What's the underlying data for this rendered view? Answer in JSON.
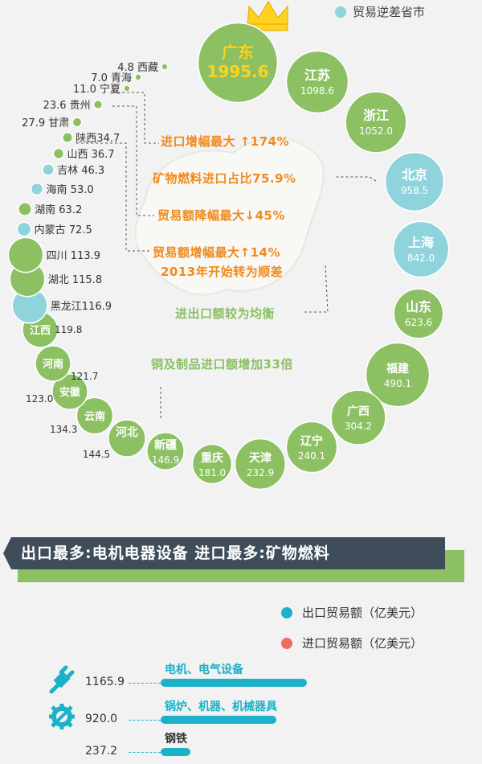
{
  "legend_top": {
    "deficit_label": "贸易逆差省市",
    "deficit_color": "#8fd3dc",
    "surplus_color": "#8cc063"
  },
  "chart_data": [
    {
      "type": "bubble",
      "title": "",
      "categories": [
        "广东",
        "江苏",
        "浙江",
        "北京",
        "上海",
        "山东",
        "福建",
        "广西",
        "辽宁",
        "天津",
        "重庆",
        "新疆",
        "河北",
        "云南",
        "安徽",
        "河南",
        "江西",
        "黑龙江",
        "湖北",
        "四川",
        "内蒙古",
        "湖南",
        "海南",
        "吉林",
        "山西",
        "陕西",
        "甘肃",
        "贵州",
        "宁夏",
        "青海",
        "西藏"
      ],
      "values": [
        1995.6,
        1098.6,
        1052.0,
        958.5,
        842.0,
        623.6,
        490.1,
        304.2,
        240.1,
        232.9,
        181.0,
        146.9,
        144.5,
        134.3,
        123.0,
        121.7,
        119.8,
        116.9,
        115.8,
        113.9,
        72.5,
        63.2,
        53.0,
        46.3,
        36.7,
        34.7,
        27.9,
        23.6,
        11.0,
        7.0,
        4.8
      ],
      "value_labels": [
        "1995.6",
        "1098.6",
        "1052.0",
        "958.5",
        "842.0",
        "623.6",
        "490.1",
        "304.2",
        "240.1",
        "232.9",
        "181.0",
        "146.9",
        "144.5",
        "134.3",
        "123.0",
        "121.7",
        "119.8",
        "116.9",
        "115.8",
        "113.9",
        "72.5",
        "63.2",
        "53.0",
        "46.3",
        "36.7",
        "34.7",
        "27.9",
        "23.6",
        "11.0",
        "7.0",
        "4.8"
      ],
      "trade_deficit": [
        "北京",
        "上海",
        "黑龙江",
        "内蒙古",
        "海南",
        "吉林"
      ],
      "top_marker": "crown"
    },
    {
      "type": "bar",
      "title": "",
      "categories": [
        "电机、电气设备",
        "锅炉、机器、机械器具",
        "钢铁"
      ],
      "values": [
        1165.9,
        920.0,
        237.2
      ],
      "value_labels": [
        "1165.9",
        "920.0",
        "237.2"
      ],
      "series": [
        {
          "name": "出口贸易额（亿美元）",
          "values": [
            1165.9,
            920.0,
            237.2
          ]
        }
      ],
      "icons": [
        "plug-icon",
        "gear-wrench-icon",
        ""
      ]
    }
  ],
  "callouts": {
    "c1": "进口增幅最大 ↑174%",
    "c2": "矿物燃料进口占比75.9%",
    "c3": "贸易额降幅最大↓45%",
    "c4a": "贸易额增幅最大↑14%",
    "c4b": "2013年开始转为顺差",
    "c5": "进出口额较为均衡",
    "c6": "铜及制品进口额增加33倍"
  },
  "banner": "出口最多:电机电器设备  进口最多:矿物燃料",
  "legend_bottom": {
    "export_label": "出口贸易额（亿美元）",
    "import_label": "进口贸易额（亿美元）",
    "export_color": "#1ab1c9",
    "import_color": "#ef6b5f"
  },
  "colors": {
    "green": "#8cc063",
    "blue": "#8fd3dc",
    "orange": "#f08a1d",
    "gold": "#ffd21f"
  }
}
